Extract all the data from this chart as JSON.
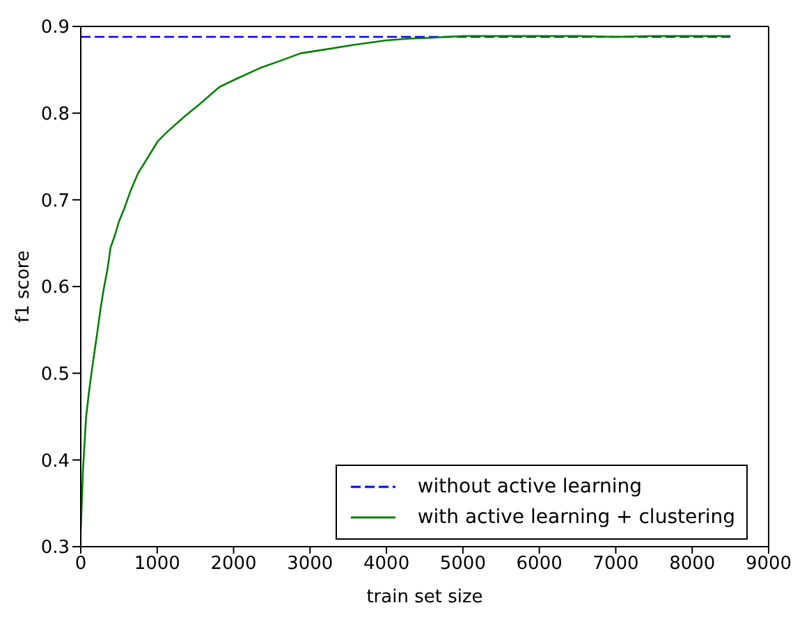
{
  "chart_data": {
    "type": "line",
    "xlabel": "train set size",
    "ylabel": "f1 score",
    "xlim": [
      0,
      9000
    ],
    "ylim": [
      0.3,
      0.9
    ],
    "xticks": [
      0,
      1000,
      2000,
      3000,
      4000,
      5000,
      6000,
      7000,
      8000,
      9000
    ],
    "yticks": [
      0.3,
      0.4,
      0.5,
      0.6,
      0.7,
      0.8,
      0.9
    ],
    "grid": false,
    "legend": "bottom right",
    "marker": "none",
    "series": [
      {
        "name": "without active learning",
        "color": "#0000ff",
        "line_style": "dashed",
        "x": [
          0,
          8500
        ],
        "values": [
          0.888,
          0.888
        ]
      },
      {
        "name": "with active learning + clustering",
        "color": "#008000",
        "line_style": "solid",
        "x": [
          0,
          30,
          70,
          110,
          140,
          180,
          213,
          260,
          300,
          350,
          390,
          450,
          500,
          570,
          650,
          746,
          850,
          1012,
          1150,
          1368,
          1550,
          1812,
          2000,
          2345,
          2600,
          2877,
          3100,
          3588,
          4000,
          4300,
          4600,
          5008,
          5500,
          6000,
          6500,
          7000,
          7500,
          8000,
          8500
        ],
        "values": [
          0.318,
          0.39,
          0.45,
          0.48,
          0.5,
          0.525,
          0.545,
          0.575,
          0.597,
          0.62,
          0.645,
          0.66,
          0.675,
          0.69,
          0.71,
          0.73,
          0.745,
          0.768,
          0.78,
          0.797,
          0.81,
          0.83,
          0.838,
          0.852,
          0.86,
          0.869,
          0.872,
          0.879,
          0.884,
          0.886,
          0.887,
          0.889,
          0.889,
          0.889,
          0.889,
          0.888,
          0.889,
          0.889,
          0.889
        ]
      }
    ]
  }
}
